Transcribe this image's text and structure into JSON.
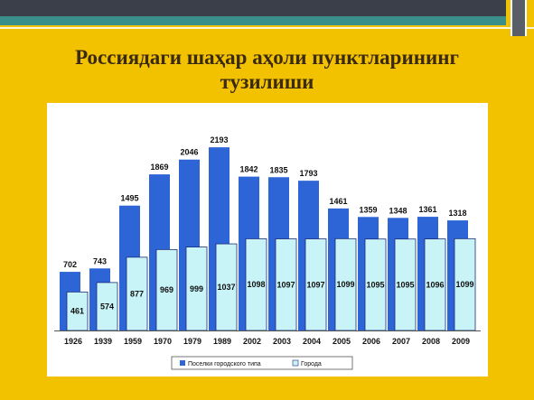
{
  "slide": {
    "title_line1": "Россиядаги шаҳар аҳоли пунктларининг",
    "title_line2": "тузилиши"
  },
  "colors": {
    "background": "#f2c200",
    "series_blue": "#2d64d6",
    "series_light": "#c8f4f7",
    "light_stroke": "#1c2a7a"
  },
  "chart_data": {
    "type": "bar",
    "categories": [
      "1926",
      "1939",
      "1959",
      "1970",
      "1979",
      "1989",
      "2002",
      "2003",
      "2004",
      "2005",
      "2006",
      "2007",
      "2008",
      "2009"
    ],
    "series": [
      {
        "name": "Поселки городского типа",
        "values": [
          702,
          743,
          1495,
          1869,
          2046,
          2193,
          1842,
          1835,
          1793,
          1461,
          1359,
          1348,
          1361,
          1318
        ]
      },
      {
        "name": "Города",
        "values": [
          461,
          574,
          877,
          969,
          999,
          1037,
          1098,
          1097,
          1097,
          1099,
          1095,
          1095,
          1096,
          1099
        ]
      }
    ],
    "ylim": [
      0,
      2400
    ],
    "grid": false,
    "legend_position": "bottom"
  }
}
